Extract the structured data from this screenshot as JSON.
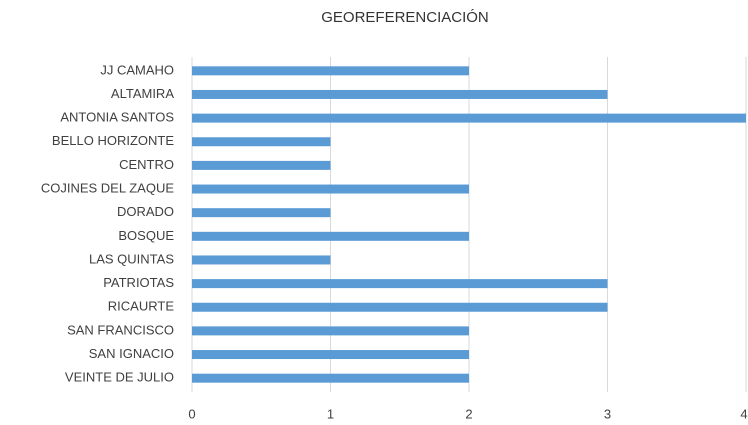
{
  "chart_data": {
    "type": "bar",
    "orientation": "horizontal",
    "title": "GEOREFERENCIACIÓN",
    "categories": [
      "JJ CAMAHO",
      "ALTAMIRA",
      "ANTONIA SANTOS",
      "BELLO HORIZONTE",
      "CENTRO",
      "COJINES DEL ZAQUE",
      "DORADO",
      "BOSQUE",
      "LAS QUINTAS",
      "PATRIOTAS",
      "RICAURTE",
      "SAN FRANCISCO",
      "SAN IGNACIO",
      "VEINTE DE JULIO"
    ],
    "values": [
      2,
      3,
      4,
      1,
      1,
      2,
      1,
      2,
      1,
      3,
      3,
      2,
      2,
      2
    ],
    "color": "#5b9bd5",
    "xlim": [
      0,
      4
    ],
    "xticks": [
      0,
      1,
      2,
      3,
      4
    ],
    "grid": true
  }
}
